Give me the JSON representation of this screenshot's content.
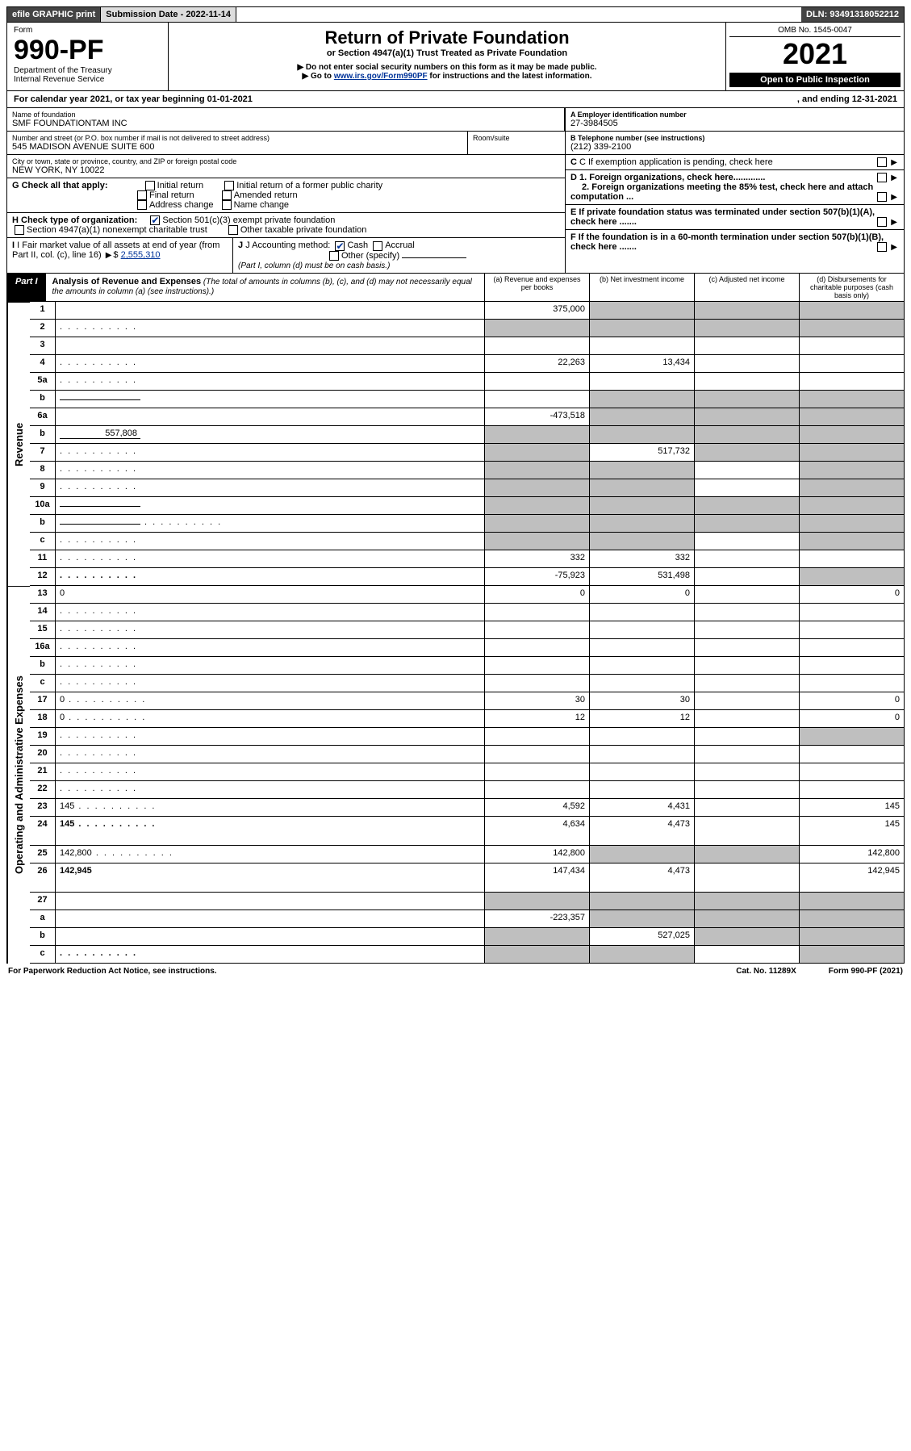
{
  "topbar": {
    "efile": "efile GRAPHIC print",
    "sub_label": "Submission Date - 2022-11-14",
    "dln": "DLN: 93491318052212"
  },
  "header": {
    "form_word": "Form",
    "form_no": "990-PF",
    "dept": "Department of the Treasury",
    "irs": "Internal Revenue Service",
    "title": "Return of Private Foundation",
    "subtitle": "or Section 4947(a)(1) Trust Treated as Private Foundation",
    "note1": "▶ Do not enter social security numbers on this form as it may be made public.",
    "note2_pre": "▶ Go to ",
    "note2_link": "www.irs.gov/Form990PF",
    "note2_post": " for instructions and the latest information.",
    "omb": "OMB No. 1545-0047",
    "year": "2021",
    "open": "Open to Public Inspection"
  },
  "cal": {
    "left": "For calendar year 2021, or tax year beginning 01-01-2021",
    "right": ", and ending 12-31-2021"
  },
  "ident": {
    "name_lbl": "Name of foundation",
    "name": "SMF FOUNDATIONTAM INC",
    "addr_lbl": "Number and street (or P.O. box number if mail is not delivered to street address)",
    "addr": "545 MADISON AVENUE SUITE 600",
    "room_lbl": "Room/suite",
    "city_lbl": "City or town, state or province, country, and ZIP or foreign postal code",
    "city": "NEW YORK, NY  10022",
    "a_lbl": "A Employer identification number",
    "a_val": "27-3984505",
    "b_lbl": "B Telephone number (see instructions)",
    "b_val": "(212) 339-2100",
    "c_lbl": "C If exemption application is pending, check here",
    "d1": "D 1. Foreign organizations, check here.............",
    "d2": "2. Foreign organizations meeting the 85% test, check here and attach computation ...",
    "e_lbl": "E  If private foundation status was terminated under section 507(b)(1)(A), check here .......",
    "f_lbl": "F  If the foundation is in a 60-month termination under section 507(b)(1)(B), check here .......",
    "g_lbl": "G Check all that apply:",
    "g_opts": [
      "Initial return",
      "Final return",
      "Address change",
      "Initial return of a former public charity",
      "Amended return",
      "Name change"
    ],
    "h_lbl": "H Check type of organization:",
    "h_501": "Section 501(c)(3) exempt private foundation",
    "h_4947": "Section 4947(a)(1) nonexempt charitable trust",
    "h_other": "Other taxable private foundation",
    "i_lbl": "I Fair market value of all assets at end of year (from Part II, col. (c), line 16)",
    "i_val": "2,555,310",
    "j_lbl": "J Accounting method:",
    "j_cash": "Cash",
    "j_accr": "Accrual",
    "j_other": "Other (specify)",
    "j_note": "(Part I, column (d) must be on cash basis.)"
  },
  "part1": {
    "tab": "Part I",
    "title_bold": "Analysis of Revenue and Expenses",
    "title_rest": " (The total of amounts in columns (b), (c), and (d) may not necessarily equal the amounts in column (a) (see instructions).)",
    "col_a": "(a)   Revenue and expenses per books",
    "col_b": "(b)   Net investment income",
    "col_c": "(c)   Adjusted net income",
    "col_d": "(d)   Disbursements for charitable purposes (cash basis only)"
  },
  "vlabels": {
    "rev": "Revenue",
    "exp": "Operating and Administrative Expenses"
  },
  "rows": [
    {
      "n": "1",
      "d": "",
      "a": "375,000",
      "b": "",
      "c": "",
      "sb": true,
      "sc": true,
      "sd": true
    },
    {
      "n": "2",
      "d": "",
      "a": "",
      "b": "",
      "c": "",
      "sa": true,
      "sb": true,
      "sc": true,
      "sd": true,
      "dots": true
    },
    {
      "n": "3",
      "d": "",
      "a": "",
      "b": "",
      "c": ""
    },
    {
      "n": "4",
      "d": "",
      "a": "22,263",
      "b": "13,434",
      "c": "",
      "dots": true
    },
    {
      "n": "5a",
      "d": "",
      "a": "",
      "b": "",
      "c": "",
      "dots": true
    },
    {
      "n": "b",
      "d": "",
      "a": "",
      "b": "",
      "c": "",
      "sa": false,
      "sb": true,
      "sc": true,
      "sd": true,
      "inline": true
    },
    {
      "n": "6a",
      "d": "",
      "a": "-473,518",
      "b": "",
      "c": "",
      "sb": true,
      "sc": true,
      "sd": true
    },
    {
      "n": "b",
      "d": "",
      "a": "",
      "b": "",
      "c": "",
      "sa": true,
      "sb": true,
      "sc": true,
      "sd": true,
      "inline_val": "557,808"
    },
    {
      "n": "7",
      "d": "",
      "a": "",
      "b": "517,732",
      "c": "",
      "sa": true,
      "sc": true,
      "sd": true,
      "dots": true
    },
    {
      "n": "8",
      "d": "",
      "a": "",
      "b": "",
      "c": "",
      "sa": true,
      "sb": true,
      "sd": true,
      "dots": true
    },
    {
      "n": "9",
      "d": "",
      "a": "",
      "b": "",
      "c": "",
      "sa": true,
      "sb": true,
      "sd": true,
      "dots": true
    },
    {
      "n": "10a",
      "d": "",
      "a": "",
      "b": "",
      "c": "",
      "sa": true,
      "sb": true,
      "sc": true,
      "sd": true,
      "inline": true
    },
    {
      "n": "b",
      "d": "",
      "a": "",
      "b": "",
      "c": "",
      "sa": true,
      "sb": true,
      "sc": true,
      "sd": true,
      "inline": true,
      "dots": true
    },
    {
      "n": "c",
      "d": "",
      "a": "",
      "b": "",
      "c": "",
      "sa": true,
      "sb": true,
      "sd": true,
      "dots": true
    },
    {
      "n": "11",
      "d": "",
      "a": "332",
      "b": "332",
      "c": "",
      "dots": true
    },
    {
      "n": "12",
      "d": "",
      "a": "-75,923",
      "b": "531,498",
      "c": "",
      "bold": true,
      "sd": true,
      "dots": true
    },
    {
      "n": "13",
      "d": "0",
      "a": "0",
      "b": "0",
      "c": ""
    },
    {
      "n": "14",
      "d": "",
      "a": "",
      "b": "",
      "c": "",
      "dots": true
    },
    {
      "n": "15",
      "d": "",
      "a": "",
      "b": "",
      "c": "",
      "dots": true
    },
    {
      "n": "16a",
      "d": "",
      "a": "",
      "b": "",
      "c": "",
      "dots": true
    },
    {
      "n": "b",
      "d": "",
      "a": "",
      "b": "",
      "c": "",
      "dots": true
    },
    {
      "n": "c",
      "d": "",
      "a": "",
      "b": "",
      "c": "",
      "dots": true
    },
    {
      "n": "17",
      "d": "0",
      "a": "30",
      "b": "30",
      "c": "",
      "dots": true
    },
    {
      "n": "18",
      "d": "0",
      "a": "12",
      "b": "12",
      "c": "",
      "dots": true
    },
    {
      "n": "19",
      "d": "",
      "a": "",
      "b": "",
      "c": "",
      "sd": true,
      "dots": true
    },
    {
      "n": "20",
      "d": "",
      "a": "",
      "b": "",
      "c": "",
      "dots": true
    },
    {
      "n": "21",
      "d": "",
      "a": "",
      "b": "",
      "c": "",
      "dots": true
    },
    {
      "n": "22",
      "d": "",
      "a": "",
      "b": "",
      "c": "",
      "dots": true
    },
    {
      "n": "23",
      "d": "145",
      "a": "4,592",
      "b": "4,431",
      "c": "",
      "dots": true
    },
    {
      "n": "24",
      "d": "145",
      "a": "4,634",
      "b": "4,473",
      "c": "",
      "bold": true,
      "dots": true,
      "tall": true
    },
    {
      "n": "25",
      "d": "142,800",
      "a": "142,800",
      "b": "",
      "c": "",
      "sb": true,
      "sc": true,
      "dots": true
    },
    {
      "n": "26",
      "d": "142,945",
      "a": "147,434",
      "b": "4,473",
      "c": "",
      "bold": true,
      "tall": true
    },
    {
      "n": "27",
      "d": "",
      "a": "",
      "b": "",
      "c": "",
      "sa": true,
      "sb": true,
      "sc": true,
      "sd": true
    },
    {
      "n": "a",
      "d": "",
      "a": "-223,357",
      "b": "",
      "c": "",
      "bold": true,
      "sb": true,
      "sc": true,
      "sd": true
    },
    {
      "n": "b",
      "d": "",
      "a": "",
      "b": "527,025",
      "c": "",
      "bold": true,
      "sa": true,
      "sc": true,
      "sd": true
    },
    {
      "n": "c",
      "d": "",
      "a": "",
      "b": "",
      "c": "",
      "bold": true,
      "sa": true,
      "sb": true,
      "sd": true,
      "dots": true
    }
  ],
  "foot": {
    "l": "For Paperwork Reduction Act Notice, see instructions.",
    "m": "Cat. No. 11289X",
    "r": "Form 990-PF (2021)"
  }
}
